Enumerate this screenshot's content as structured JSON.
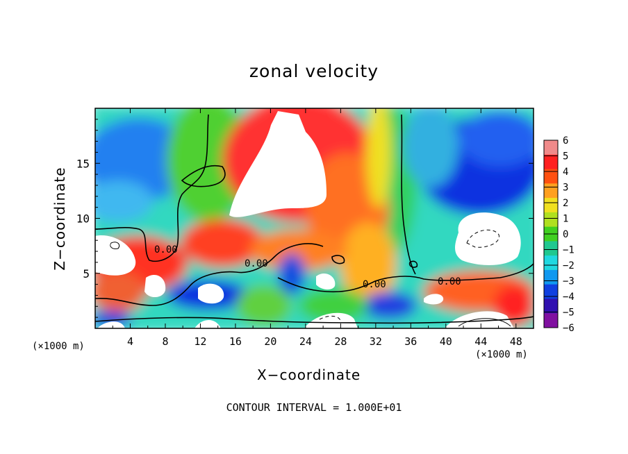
{
  "chart_data": {
    "type": "heatmap",
    "title": "zonal velocity",
    "xlabel": "X−coordinate",
    "ylabel": "Z−coordinate",
    "x_unit_left": "(×1000 m)",
    "x_unit_right": "(×1000 m)",
    "xlim": [
      0,
      50
    ],
    "ylim": [
      0,
      20
    ],
    "xticks": [
      4,
      8,
      12,
      16,
      20,
      24,
      28,
      32,
      36,
      40,
      44,
      48
    ],
    "yticks": [
      5,
      10,
      15
    ],
    "colorbar": {
      "min": -6,
      "max": 6,
      "ticks": [
        "6",
        "5",
        "4",
        "3",
        "2",
        "1",
        "0",
        "−1",
        "−2",
        "−3",
        "−4",
        "−5",
        "−6"
      ],
      "colors": [
        "#f08a8a",
        "#ff2020",
        "#ff5010",
        "#ffa020",
        "#f0e020",
        "#b0e020",
        "#40d020",
        "#20c890",
        "#20d8e0",
        "#1098f0",
        "#1040e0",
        "#3010b0",
        "#8010a0"
      ]
    },
    "contour_labels": [
      "0.00",
      "0.00",
      "0.00",
      "0.00"
    ],
    "contour_interval_text": "CONTOUR INTERVAL = 1.000E+01",
    "grid": false,
    "legend": "colorbar-right",
    "notes": "Approximate field: strong positive jet (white, >6) near x=18–26, z=11–19; positive band at low levels x=0–30; negative (blue) regions near x=40–50, z=12–18 and near bottom; white saturated blobs at x≈44–48, z≈7–10."
  }
}
